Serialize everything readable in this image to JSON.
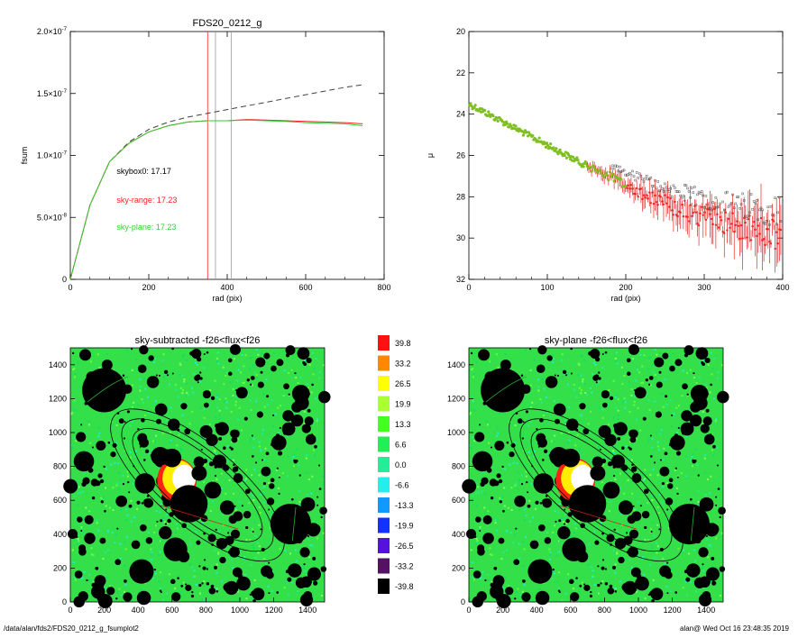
{
  "chart_data": [
    {
      "type": "line",
      "title": "FDS20_0212_g",
      "xlabel": "rad (pix)",
      "ylabel": "fsum",
      "xlim": [
        0,
        800
      ],
      "ylim": [
        0,
        2e-07
      ],
      "xticks": [
        "0",
        "200",
        "400",
        "600",
        "800"
      ],
      "yticks": [
        {
          "mant": "0",
          "exp": ""
        },
        {
          "mant": "5.0×10",
          "exp": "-8"
        },
        {
          "mant": "1.0×10",
          "exp": "-7"
        },
        {
          "mant": "1.5×10",
          "exp": "-7"
        },
        {
          "mant": "2.0×10",
          "exp": "-7"
        }
      ],
      "series": [
        {
          "color": "#404040",
          "dashed": true,
          "x": [
            0,
            50,
            100,
            150,
            200,
            250,
            300,
            350,
            400,
            450,
            500,
            550,
            600,
            650,
            700,
            745
          ],
          "values": [
            0,
            6e-08,
            9.5e-08,
            1.11e-07,
            1.21e-07,
            1.27e-07,
            1.31e-07,
            1.34e-07,
            1.37e-07,
            1.4e-07,
            1.43e-07,
            1.46e-07,
            1.49e-07,
            1.52e-07,
            1.55e-07,
            1.57e-07
          ]
        },
        {
          "color": "#ee2222",
          "x": [
            0,
            50,
            100,
            150,
            200,
            250,
            300,
            350,
            400,
            450,
            500,
            550,
            600,
            650,
            700,
            745
          ],
          "values": [
            0,
            6e-08,
            9.5e-08,
            1.1e-07,
            1.19e-07,
            1.24e-07,
            1.27e-07,
            1.28e-07,
            1.28e-07,
            1.29e-07,
            1.285e-07,
            1.28e-07,
            1.275e-07,
            1.27e-07,
            1.265e-07,
            1.255e-07
          ]
        },
        {
          "color": "#33cc33",
          "x": [
            0,
            50,
            100,
            150,
            200,
            250,
            300,
            350,
            400,
            450,
            500,
            550,
            600,
            650,
            700,
            745
          ],
          "values": [
            0,
            6e-08,
            9.5e-08,
            1.1e-07,
            1.19e-07,
            1.24e-07,
            1.27e-07,
            1.28e-07,
            1.28e-07,
            1.285e-07,
            1.28e-07,
            1.275e-07,
            1.265e-07,
            1.26e-07,
            1.255e-07,
            1.24e-07
          ]
        }
      ],
      "vlines": [
        {
          "x": 350,
          "color": "#ee2222"
        },
        {
          "x": 370,
          "color": "#999999"
        },
        {
          "x": 410,
          "color": "#999999"
        }
      ],
      "annotations": [
        {
          "text": "skybox0: 17.17",
          "color": "#000000",
          "x": 210,
          "y": 8.5e-08
        },
        {
          "text": "sky-range: 17.23",
          "color": "#ee2222",
          "x": 210,
          "y": 6.2e-08
        },
        {
          "text": "sky-plane: 17.23",
          "color": "#33cc33",
          "x": 210,
          "y": 4e-08
        }
      ]
    },
    {
      "type": "scatter",
      "title": "",
      "xlabel": "rad (pix)",
      "ylabel": "μ",
      "xlim": [
        0,
        400
      ],
      "ylim": [
        32,
        20
      ],
      "xticks": [
        "0",
        "100",
        "200",
        "300",
        "400"
      ],
      "yticks": [
        "20",
        "22",
        "24",
        "26",
        "28",
        "30",
        "32"
      ],
      "profile": {
        "x": [
          0,
          50,
          100,
          150,
          200,
          250,
          300,
          350,
          400
        ],
        "y": [
          23.5,
          24.5,
          25.5,
          26.5,
          27.4,
          28.3,
          29.0,
          29.5,
          29.9
        ]
      },
      "series": [
        {
          "name": "",
          "color": "#7fbf22"
        },
        {
          "name": "",
          "color": "#ee2222"
        },
        {
          "name": "",
          "color": "#555555"
        }
      ]
    },
    {
      "type": "heatmap",
      "title": "sky-subtracted -f26<flux<f26",
      "xlim": [
        0,
        1500
      ],
      "ylim": [
        0,
        1500
      ],
      "xticks": [
        "0",
        "200",
        "400",
        "600",
        "800",
        "1000",
        "1200",
        "1400"
      ],
      "yticks": [
        "0",
        "200",
        "400",
        "600",
        "800",
        "1000",
        "1200",
        "1400"
      ]
    },
    {
      "type": "heatmap",
      "title": "sky-plane -f26<flux<f26",
      "xlim": [
        0,
        1500
      ],
      "ylim": [
        0,
        1500
      ],
      "xticks": [
        "0",
        "200",
        "400",
        "600",
        "800",
        "1000",
        "1200",
        "1400"
      ],
      "yticks": [
        "0",
        "200",
        "400",
        "600",
        "800",
        "1000",
        "1200",
        "1400"
      ]
    }
  ],
  "colorbar": {
    "labels": [
      "39.8",
      "33.2",
      "26.5",
      "19.9",
      "13.3",
      "6.6",
      "0.0",
      "-6.6",
      "-13.3",
      "-19.9",
      "-26.5",
      "-33.2",
      "-39.8"
    ],
    "colors": [
      "#ff1111",
      "#ff8800",
      "#ffff00",
      "#aaff33",
      "#44ff22",
      "#22ee55",
      "#22ee99",
      "#22eeee",
      "#1199ff",
      "#1133ff",
      "#5511dd",
      "#551166",
      "#000000"
    ]
  },
  "footer": {
    "left": "/data/alan/fds2/FDS20_0212_g_fsumplot2",
    "right": "alan@  Wed Oct 16 23:48:35 2019"
  }
}
